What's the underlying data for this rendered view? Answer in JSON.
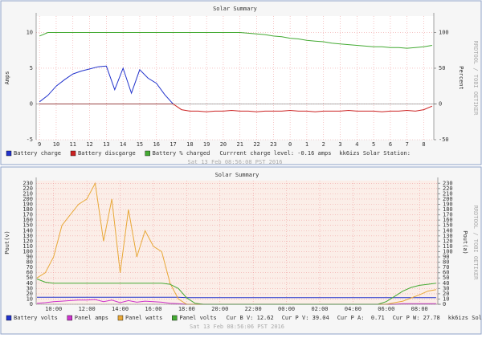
{
  "chart_data": [
    {
      "type": "line",
      "title": "Solar Summary",
      "ylabel": "Amps",
      "y2label": "Percent",
      "watermark": "RRDTOOL / TOBI OETIKER",
      "footer": "Sat 13 Feb 08:56:08 PST 2016",
      "background": "#ffffff",
      "notes": [
        "Currrent charge level: -0.16 amps",
        "kk6izs Solar Station:"
      ],
      "x": [
        9,
        9.5,
        10,
        10.5,
        11,
        11.5,
        12,
        12.5,
        13,
        13.5,
        14,
        14.5,
        15,
        15.5,
        16,
        16.5,
        17,
        17.5,
        18,
        18.5,
        19,
        19.5,
        20,
        20.5,
        21,
        21.5,
        22,
        22.5,
        23,
        23.5,
        24,
        24.5,
        25,
        25.5,
        26,
        26.5,
        27,
        27.5,
        28,
        28.5,
        29,
        29.5,
        30,
        30.5,
        31,
        31.5,
        32,
        32.5
      ],
      "xlim": [
        8.8,
        32.6
      ],
      "xticks": [
        9,
        10,
        11,
        12,
        13,
        14,
        15,
        16,
        17,
        18,
        19,
        20,
        21,
        22,
        23,
        {
          "value": 24,
          "label": "0"
        },
        {
          "value": 25,
          "label": "1"
        },
        {
          "value": 26,
          "label": "2"
        },
        {
          "value": 27,
          "label": "3"
        },
        {
          "value": 28,
          "label": "4"
        },
        {
          "value": 29,
          "label": "5"
        },
        {
          "value": 30,
          "label": "6"
        },
        {
          "value": 31,
          "label": "7"
        },
        {
          "value": 32,
          "label": "8"
        }
      ],
      "ylim": [
        -5,
        12.3
      ],
      "yticks": [
        -5,
        0,
        5,
        10
      ],
      "y2lim": [
        -50,
        123
      ],
      "y2ticks": [
        -50,
        0,
        50,
        100
      ],
      "series": [
        {
          "name": "Battery charge",
          "color": "#2233cc",
          "values": [
            0.3,
            1.2,
            2.5,
            3.4,
            4.2,
            4.6,
            4.9,
            5.2,
            5.3,
            2.0,
            5.0,
            1.5,
            4.8,
            3.6,
            2.9,
            1.3,
            0,
            null,
            null,
            null,
            null,
            null,
            null,
            null,
            null,
            null,
            null,
            null,
            null,
            null,
            null,
            null,
            null,
            null,
            null,
            null,
            null,
            null,
            null,
            null,
            null,
            null,
            null,
            null,
            null,
            null,
            null,
            null
          ]
        },
        {
          "name": "Battery discgarge",
          "color": "#cc2222",
          "values": [
            0,
            0,
            0,
            0,
            0,
            0,
            0,
            0,
            0,
            0,
            0,
            0,
            0,
            0,
            0,
            0,
            0,
            -0.8,
            -1.0,
            -1.0,
            -1.1,
            -1.0,
            -1.0,
            -0.9,
            -1.0,
            -1.0,
            -1.1,
            -1.0,
            -1.0,
            -1.0,
            -0.9,
            -1.0,
            -1.0,
            -1.1,
            -1.0,
            -1.0,
            -1.0,
            -0.9,
            -1.0,
            -1.0,
            -1.0,
            -1.1,
            -1.0,
            -1.0,
            -0.9,
            -1.0,
            -0.8,
            -0.3
          ]
        },
        {
          "name": "Battery % charged",
          "color": "#44aa33",
          "axis": "y2",
          "values": [
            95,
            100,
            100,
            100,
            100,
            100,
            100,
            100,
            100,
            100,
            100,
            100,
            100,
            100,
            100,
            100,
            100,
            100,
            100,
            100,
            100,
            100,
            100,
            100,
            100,
            99,
            98,
            97,
            95,
            94,
            92,
            91,
            89,
            88,
            87,
            85,
            84,
            83,
            82,
            81,
            80,
            80,
            79,
            79,
            78,
            79,
            80,
            82
          ]
        }
      ]
    },
    {
      "type": "line",
      "title": "Solar Summary",
      "ylabel": "Pout(v)",
      "y2label": "Pout(a)",
      "watermark": "RRDTOOL / TOBI OETIKER",
      "footer": "Sat 13 Feb 08:56:06 PST 2016",
      "background": "#fbeee8",
      "notes": [
        "Cur B V: 12.62",
        "Cur P V: 39.04",
        "Cur P A:  0.71",
        "Cur P W: 27.78",
        "kk6izs Solar Station:"
      ],
      "x": [
        9,
        9.5,
        10,
        10.5,
        11,
        11.5,
        12,
        12.5,
        13,
        13.5,
        14,
        14.5,
        15,
        15.5,
        16,
        16.5,
        17,
        17.5,
        18,
        18.5,
        19,
        19.5,
        20,
        20.5,
        21,
        21.5,
        22,
        22.5,
        23,
        23.5,
        24,
        24.5,
        25,
        25.5,
        26,
        26.5,
        27,
        27.5,
        28,
        28.5,
        29,
        29.5,
        30,
        30.5,
        31,
        31.5,
        32,
        32.5,
        33
      ],
      "xlim": [
        8.95,
        33.1
      ],
      "xticks": [
        {
          "value": 10,
          "label": "10:00"
        },
        {
          "value": 12,
          "label": "12:00"
        },
        {
          "value": 14,
          "label": "14:00"
        },
        {
          "value": 16,
          "label": "16:00"
        },
        {
          "value": 18,
          "label": "18:00"
        },
        {
          "value": 20,
          "label": "20:00"
        },
        {
          "value": 22,
          "label": "22:00"
        },
        {
          "value": 24,
          "label": "00:00"
        },
        {
          "value": 26,
          "label": "02:00"
        },
        {
          "value": 28,
          "label": "04:00"
        },
        {
          "value": 30,
          "label": "06:00"
        },
        {
          "value": 32,
          "label": "08:00"
        }
      ],
      "ylim": [
        0,
        235
      ],
      "yticks": [
        0,
        10,
        20,
        30,
        40,
        50,
        60,
        70,
        80,
        90,
        100,
        110,
        120,
        130,
        140,
        150,
        160,
        170,
        180,
        190,
        200,
        210,
        220,
        230
      ],
      "y2lim": [
        0,
        235
      ],
      "y2ticks": [
        0,
        10,
        20,
        30,
        40,
        50,
        60,
        70,
        80,
        90,
        100,
        110,
        120,
        130,
        140,
        150,
        160,
        170,
        180,
        190,
        200,
        210,
        220,
        230
      ],
      "series": [
        {
          "name": "Battery volts",
          "color": "#2233cc",
          "values": [
            13.2,
            13.2,
            13.2,
            13.2,
            13.2,
            13.2,
            13.2,
            13.2,
            13.2,
            13.2,
            13.2,
            13.2,
            13.2,
            13.2,
            13.2,
            13.2,
            13.2,
            13.2,
            12.6,
            12.6,
            12.6,
            12.6,
            12.6,
            12.6,
            12.6,
            12.6,
            12.6,
            12.6,
            12.6,
            12.6,
            12.6,
            12.6,
            12.6,
            12.6,
            12.6,
            12.6,
            12.6,
            12.6,
            12.6,
            12.6,
            12.6,
            12.6,
            12.6,
            12.6,
            12.6,
            12.6,
            12.6,
            12.6,
            12.6
          ]
        },
        {
          "name": "Panel amps",
          "color": "#cc33cc",
          "values": [
            2,
            3,
            5,
            6,
            7,
            8,
            8,
            9,
            5,
            8,
            3,
            7,
            4,
            6,
            5,
            4,
            2,
            1,
            0,
            0,
            0,
            0,
            0,
            0,
            0,
            0,
            0,
            0,
            0,
            0,
            0,
            0,
            0,
            0,
            0,
            0,
            0,
            0,
            0,
            0,
            0,
            0,
            0,
            0,
            1,
            1,
            1,
            1,
            1
          ]
        },
        {
          "name": "Panel watts",
          "color": "#e8a838",
          "values": [
            50,
            60,
            90,
            150,
            170,
            190,
            200,
            230,
            120,
            200,
            60,
            180,
            90,
            140,
            110,
            100,
            40,
            10,
            0,
            0,
            0,
            0,
            0,
            0,
            0,
            0,
            0,
            0,
            0,
            0,
            0,
            0,
            0,
            0,
            0,
            0,
            0,
            0,
            0,
            0,
            0,
            0,
            0,
            3,
            6,
            12,
            18,
            25,
            28
          ]
        },
        {
          "name": "Panel volts",
          "color": "#44aa33",
          "values": [
            48,
            42,
            40,
            40,
            40,
            40,
            40,
            40,
            40,
            40,
            40,
            40,
            40,
            40,
            40,
            40,
            38,
            30,
            12,
            2,
            0,
            0,
            0,
            0,
            0,
            0,
            0,
            0,
            0,
            0,
            0,
            0,
            0,
            0,
            0,
            0,
            0,
            0,
            0,
            0,
            0,
            0,
            5,
            15,
            25,
            32,
            36,
            38,
            40
          ]
        }
      ]
    }
  ]
}
